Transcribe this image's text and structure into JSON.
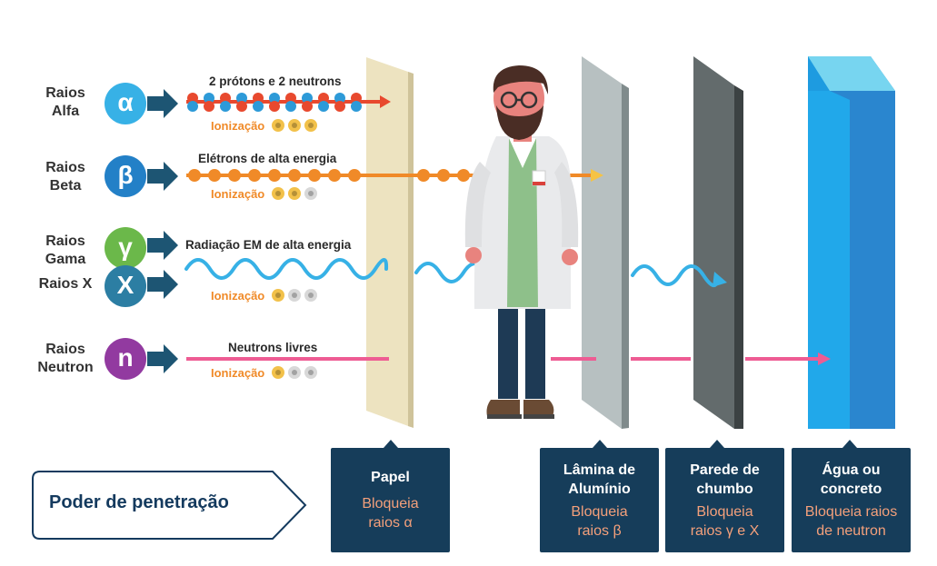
{
  "colors": {
    "alpha": "#37b1e6",
    "beta": "#2380c7",
    "gamma": "#6bb84a",
    "x": "#2c7ea3",
    "neutron": "#923aa0",
    "box": "#163d5a",
    "box_sub": "#f4a07b",
    "ionization": "#f08a28"
  },
  "rays": [
    {
      "name": "Raios Alfa",
      "symbol": "α",
      "title": "2 prótons e 2 neutrons",
      "ionization_label": "Ionização",
      "ionization_level": 3
    },
    {
      "name": "Raios Beta",
      "symbol": "β",
      "title": "Elétrons de alta energia",
      "ionization_label": "Ionização",
      "ionization_level": 2
    },
    {
      "name": "Raios Gama",
      "symbol": "γ",
      "title": "Radiação EM de alta energia",
      "ionization_label": "Ionização",
      "ionization_level": 1
    },
    {
      "name": "Raios X",
      "symbol": "X"
    },
    {
      "name": "Raios Neutron",
      "symbol": "n",
      "title": "Neutrons livres",
      "ionization_label": "Ionização",
      "ionization_level": 1
    }
  ],
  "penetration_label": "Poder de penetração",
  "barriers": [
    {
      "title": "Papel",
      "subtitle": "Bloqueia raios α"
    },
    {
      "title": "Lâmina de Alumínio",
      "subtitle": "Bloqueia raios β"
    },
    {
      "title": "Parede de chumbo",
      "subtitle": "Bloqueia raios γ e X"
    },
    {
      "title": "Água ou concreto",
      "subtitle": "Bloqueia raios de neutron"
    }
  ]
}
